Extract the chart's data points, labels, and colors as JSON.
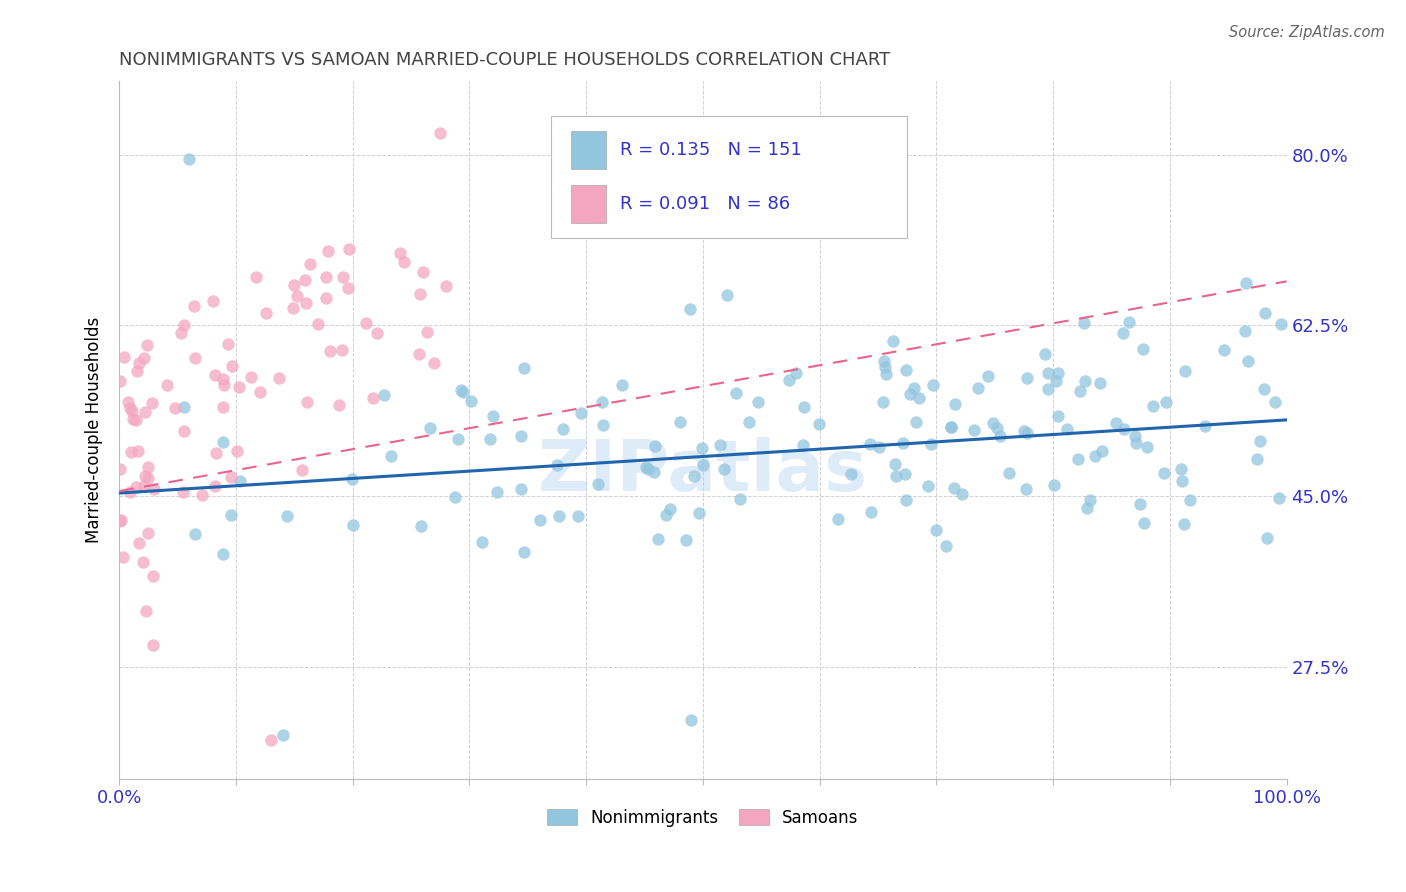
{
  "title": "NONIMMIGRANTS VS SAMOAN MARRIED-COUPLE HOUSEHOLDS CORRELATION CHART",
  "source": "Source: ZipAtlas.com",
  "ylabel": "Married-couple Households",
  "ytick_labels": [
    "27.5%",
    "45.0%",
    "62.5%",
    "80.0%"
  ],
  "ytick_values": [
    0.275,
    0.45,
    0.625,
    0.8
  ],
  "xmin": 0.0,
  "xmax": 1.0,
  "ymin": 0.16,
  "ymax": 0.875,
  "watermark": "ZIPatlas",
  "legend_blue_label": "Nonimmigrants",
  "legend_pink_label": "Samoans",
  "legend_blue_r": "0.135",
  "legend_blue_n": "151",
  "legend_pink_r": "0.091",
  "legend_pink_n": "86",
  "blue_color": "#92c5de",
  "pink_color": "#f4a6c0",
  "blue_fill_color": "#92c5de",
  "pink_fill_color": "#f4a6c0",
  "blue_line_color": "#2166ac",
  "pink_line_color": "#e8648a",
  "axis_color": "#3333cc",
  "title_color": "#444444",
  "blue_trend_x": [
    0.0,
    1.0
  ],
  "blue_trend_y": [
    0.453,
    0.528
  ],
  "pink_trend_x": [
    0.0,
    1.0
  ],
  "pink_trend_y": [
    0.455,
    0.67
  ]
}
